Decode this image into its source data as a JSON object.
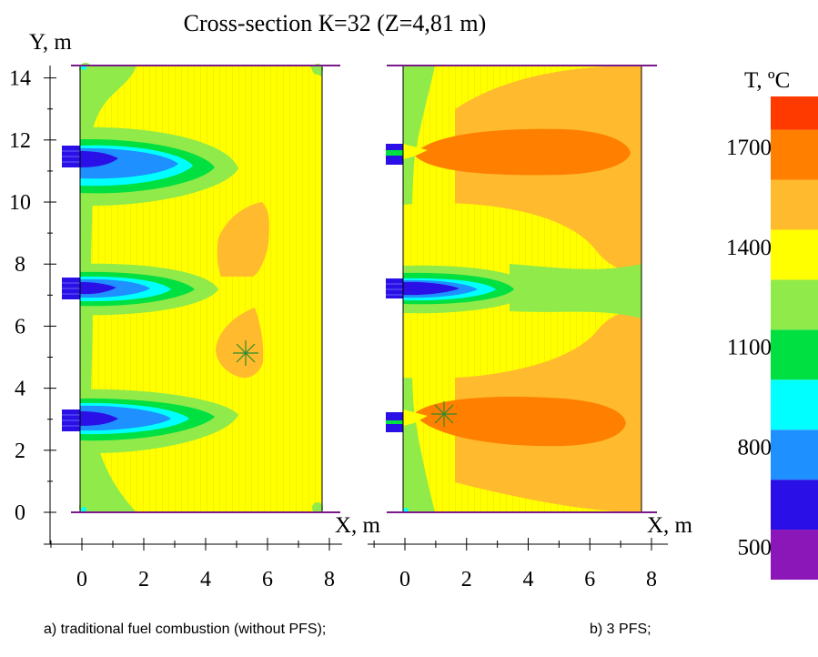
{
  "chart_data": {
    "type": "heatmap",
    "title": "Cross-section К=32 (Z=4,81 m)",
    "ylabel": "Y, m",
    "colorbar": {
      "title": "T, ºC",
      "tick_labels": [
        "1700",
        "1400",
        "1100",
        "800",
        "500"
      ],
      "tick_values": [
        1700,
        1400,
        1100,
        800,
        500
      ],
      "range": [
        400,
        1850
      ],
      "levels": [
        {
          "from": 400,
          "to": 550,
          "color": "#8b17b8"
        },
        {
          "from": 550,
          "to": 700,
          "color": "#2a10e6"
        },
        {
          "from": 700,
          "to": 850,
          "color": "#1e90ff"
        },
        {
          "from": 850,
          "to": 1000,
          "color": "#00ffff"
        },
        {
          "from": 1000,
          "to": 1150,
          "color": "#00e040"
        },
        {
          "from": 1150,
          "to": 1300,
          "color": "#8fea4a"
        },
        {
          "from": 1300,
          "to": 1450,
          "color": "#ffff00"
        },
        {
          "from": 1450,
          "to": 1600,
          "color": "#ffba2e"
        },
        {
          "from": 1600,
          "to": 1750,
          "color": "#ff7f00"
        },
        {
          "from": 1750,
          "to": 1850,
          "color": "#ff3a00"
        }
      ]
    },
    "y_ticks": [
      "0",
      "2",
      "4",
      "6",
      "8",
      "10",
      "12",
      "14"
    ],
    "ylim": [
      -1,
      14.4
    ],
    "panels": [
      {
        "xlabel": "X, m",
        "caption": "a) traditional fuel combustion (without PFS);",
        "x_ticks": [
          "0",
          "2",
          "4",
          "6",
          "8"
        ],
        "xlim": [
          -1.2,
          8.3
        ],
        "domain": {
          "x": [
            0,
            7.7
          ],
          "y": [
            0,
            14.4
          ]
        },
        "background_T": 1375,
        "burner_heights_y": [
          11.4,
          7.2,
          2.9
        ],
        "marker": {
          "x": 5.3,
          "y": 5.2
        },
        "hot_zones_T": [
          1525,
          1525
        ],
        "jet_zones_T": [
          1225,
          1075,
          925,
          775,
          625
        ]
      },
      {
        "xlabel": "X, m",
        "caption": "b) 3 PFS;",
        "x_ticks": [
          "0",
          "2",
          "4",
          "6",
          "8"
        ],
        "xlim": [
          -1.2,
          8.3
        ],
        "domain": {
          "x": [
            0,
            7.7
          ],
          "y": [
            0,
            14.4
          ]
        },
        "background_T": 1375,
        "burner_heights_y": [
          11.6,
          7.2,
          2.9
        ],
        "marker": {
          "x": 1.4,
          "y": 3.2
        },
        "hot_zones_T": [
          1525,
          1675
        ],
        "jet_zones_T": [
          1225,
          1075,
          925,
          775,
          625
        ]
      }
    ]
  }
}
